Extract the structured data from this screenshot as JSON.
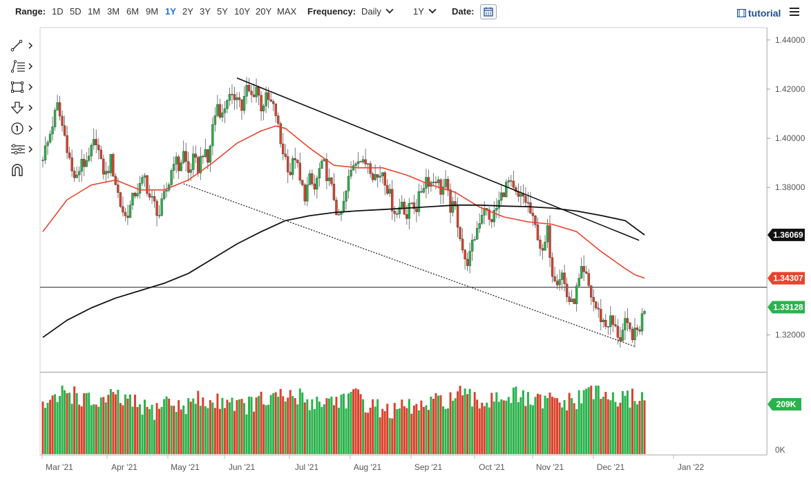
{
  "toolbar": {
    "range_label": "Range:",
    "ranges": [
      "1D",
      "5D",
      "1M",
      "3M",
      "6M",
      "9M",
      "1Y",
      "2Y",
      "3Y",
      "5Y",
      "10Y",
      "20Y",
      "MAX"
    ],
    "active_range": "1Y",
    "frequency_label": "Frequency:",
    "frequency_value": "Daily",
    "period_value": "1Y",
    "date_label": "Date:",
    "tutorial_label": "tutorial"
  },
  "tool_icons": [
    "trendline-icon",
    "fibonacci-icon",
    "rectangle-icon",
    "arrow-down-icon",
    "annotation-icon",
    "settings-lines-icon",
    "magnet-icon"
  ],
  "colors": {
    "up": "#2bb24c",
    "down": "#d9422c",
    "ma_short": "#e8432d",
    "ma_long": "#111111",
    "axis_text": "#555555",
    "accent": "#1f6fd1"
  },
  "chart_data": {
    "type": "candlestick",
    "instrument": "",
    "frequency": "Daily",
    "x_ticks": [
      "Mar '21",
      "Apr '21",
      "May '21",
      "Jun '21",
      "Jul '21",
      "Aug '21",
      "Sep '21",
      "Oct '21",
      "Nov '21",
      "Dec '21",
      "Jan '22"
    ],
    "y_ticks": [
      "1.44000",
      "1.42000",
      "1.40000",
      "1.38000",
      "1.32000"
    ],
    "ylim": [
      1.305,
      1.445
    ],
    "price_labels": [
      {
        "value": 1.36069,
        "text": "1.36069",
        "color": "#111111"
      },
      {
        "value": 1.34307,
        "text": "1.34307",
        "color": "#e8432d"
      },
      {
        "value": 1.33128,
        "text": "1.33128",
        "color": "#2bb24c"
      }
    ],
    "horizontal_line": 1.3394,
    "close_path": [
      [
        0,
        1.393
      ],
      [
        2,
        1.398
      ],
      [
        4,
        1.406
      ],
      [
        6,
        1.413
      ],
      [
        8,
        1.405
      ],
      [
        10,
        1.397
      ],
      [
        12,
        1.386
      ],
      [
        14,
        1.383
      ],
      [
        16,
        1.392
      ],
      [
        18,
        1.388
      ],
      [
        20,
        1.395
      ],
      [
        22,
        1.4
      ],
      [
        24,
        1.389
      ],
      [
        26,
        1.385
      ],
      [
        28,
        1.391
      ],
      [
        30,
        1.382
      ],
      [
        32,
        1.373
      ],
      [
        34,
        1.368
      ],
      [
        36,
        1.372
      ],
      [
        38,
        1.378
      ],
      [
        40,
        1.38
      ],
      [
        42,
        1.384
      ],
      [
        44,
        1.376
      ],
      [
        46,
        1.373
      ],
      [
        48,
        1.369
      ],
      [
        50,
        1.376
      ],
      [
        52,
        1.382
      ],
      [
        54,
        1.392
      ],
      [
        56,
        1.388
      ],
      [
        58,
        1.394
      ],
      [
        60,
        1.386
      ],
      [
        62,
        1.391
      ],
      [
        64,
        1.388
      ],
      [
        66,
        1.395
      ],
      [
        68,
        1.39
      ],
      [
        70,
        1.405
      ],
      [
        72,
        1.414
      ],
      [
        74,
        1.409
      ],
      [
        76,
        1.417
      ],
      [
        78,
        1.415
      ],
      [
        80,
        1.419
      ],
      [
        82,
        1.412
      ],
      [
        84,
        1.42
      ],
      [
        86,
        1.417
      ],
      [
        88,
        1.421
      ],
      [
        90,
        1.413
      ],
      [
        92,
        1.416
      ],
      [
        94,
        1.414
      ],
      [
        96,
        1.41
      ],
      [
        98,
        1.398
      ],
      [
        100,
        1.392
      ],
      [
        102,
        1.386
      ],
      [
        104,
        1.393
      ],
      [
        106,
        1.382
      ],
      [
        108,
        1.377
      ],
      [
        110,
        1.383
      ],
      [
        112,
        1.379
      ],
      [
        114,
        1.387
      ],
      [
        116,
        1.389
      ],
      [
        118,
        1.382
      ],
      [
        120,
        1.376
      ],
      [
        122,
        1.366
      ],
      [
        124,
        1.373
      ],
      [
        126,
        1.383
      ],
      [
        128,
        1.39
      ],
      [
        130,
        1.393
      ],
      [
        132,
        1.389
      ],
      [
        134,
        1.391
      ],
      [
        136,
        1.386
      ],
      [
        138,
        1.384
      ],
      [
        140,
        1.387
      ],
      [
        142,
        1.38
      ],
      [
        144,
        1.373
      ],
      [
        146,
        1.369
      ],
      [
        148,
        1.375
      ],
      [
        150,
        1.368
      ],
      [
        152,
        1.374
      ],
      [
        154,
        1.372
      ],
      [
        156,
        1.379
      ],
      [
        158,
        1.384
      ],
      [
        160,
        1.382
      ],
      [
        162,
        1.384
      ],
      [
        164,
        1.379
      ],
      [
        166,
        1.381
      ],
      [
        168,
        1.372
      ],
      [
        170,
        1.371
      ],
      [
        172,
        1.361
      ],
      [
        174,
        1.349
      ],
      [
        176,
        1.352
      ],
      [
        178,
        1.36
      ],
      [
        180,
        1.367
      ],
      [
        182,
        1.373
      ],
      [
        184,
        1.366
      ],
      [
        186,
        1.369
      ],
      [
        188,
        1.374
      ],
      [
        190,
        1.379
      ],
      [
        192,
        1.382
      ],
      [
        194,
        1.378
      ],
      [
        196,
        1.375
      ],
      [
        198,
        1.376
      ],
      [
        200,
        1.373
      ],
      [
        202,
        1.366
      ],
      [
        204,
        1.361
      ],
      [
        206,
        1.352
      ],
      [
        208,
        1.362
      ],
      [
        210,
        1.346
      ],
      [
        212,
        1.343
      ],
      [
        214,
        1.345
      ],
      [
        216,
        1.336
      ],
      [
        218,
        1.332
      ],
      [
        220,
        1.338
      ],
      [
        222,
        1.345
      ],
      [
        224,
        1.343
      ],
      [
        226,
        1.336
      ],
      [
        228,
        1.331
      ],
      [
        230,
        1.327
      ],
      [
        232,
        1.324
      ],
      [
        234,
        1.326
      ],
      [
        236,
        1.322
      ],
      [
        238,
        1.319
      ],
      [
        240,
        1.324
      ],
      [
        242,
        1.321
      ],
      [
        244,
        1.32
      ],
      [
        246,
        1.3234
      ],
      [
        248,
        1.3313
      ]
    ],
    "ma_short": [
      [
        0,
        1.362
      ],
      [
        10,
        1.375
      ],
      [
        20,
        1.381
      ],
      [
        30,
        1.383
      ],
      [
        40,
        1.379
      ],
      [
        50,
        1.379
      ],
      [
        60,
        1.383
      ],
      [
        70,
        1.39
      ],
      [
        80,
        1.398
      ],
      [
        90,
        1.403
      ],
      [
        96,
        1.405
      ],
      [
        100,
        1.404
      ],
      [
        110,
        1.396
      ],
      [
        120,
        1.389
      ],
      [
        130,
        1.388
      ],
      [
        140,
        1.388
      ],
      [
        150,
        1.385
      ],
      [
        160,
        1.381
      ],
      [
        170,
        1.378
      ],
      [
        180,
        1.372
      ],
      [
        190,
        1.368
      ],
      [
        200,
        1.366
      ],
      [
        210,
        1.365
      ],
      [
        220,
        1.362
      ],
      [
        230,
        1.354
      ],
      [
        240,
        1.347
      ],
      [
        244,
        1.3445
      ],
      [
        248,
        1.3431
      ]
    ],
    "ma_long": [
      [
        0,
        1.319
      ],
      [
        10,
        1.326
      ],
      [
        20,
        1.331
      ],
      [
        30,
        1.335
      ],
      [
        40,
        1.338
      ],
      [
        50,
        1.341
      ],
      [
        60,
        1.345
      ],
      [
        70,
        1.351
      ],
      [
        80,
        1.357
      ],
      [
        90,
        1.362
      ],
      [
        100,
        1.3665
      ],
      [
        110,
        1.3685
      ],
      [
        120,
        1.3698
      ],
      [
        130,
        1.3705
      ],
      [
        140,
        1.371
      ],
      [
        150,
        1.3716
      ],
      [
        160,
        1.3722
      ],
      [
        170,
        1.3728
      ],
      [
        180,
        1.3728
      ],
      [
        190,
        1.3724
      ],
      [
        200,
        1.3722
      ],
      [
        210,
        1.3716
      ],
      [
        220,
        1.3704
      ],
      [
        230,
        1.3686
      ],
      [
        240,
        1.3665
      ],
      [
        248,
        1.3607
      ]
    ],
    "trendline_upper": [
      [
        80,
        1.4245
      ],
      [
        223,
        1.3731
      ]
    ],
    "trendline_lower_dotted": [
      [
        58,
        1.3815
      ],
      [
        248,
        1.3154
      ]
    ],
    "volume_label": "209K",
    "volume_zero_label": "0K",
    "volume": [
      [
        0,
        0.72
      ],
      [
        6,
        0.77
      ],
      [
        8,
        0.95
      ],
      [
        12,
        0.9
      ],
      [
        20,
        0.74
      ],
      [
        30,
        0.82
      ],
      [
        40,
        0.7
      ],
      [
        46,
        0.62
      ],
      [
        50,
        0.8
      ],
      [
        56,
        0.68
      ],
      [
        64,
        0.79
      ],
      [
        70,
        0.73
      ],
      [
        76,
        0.82
      ],
      [
        82,
        0.7
      ],
      [
        90,
        0.77
      ],
      [
        96,
        0.8
      ],
      [
        104,
        0.84
      ],
      [
        112,
        0.76
      ],
      [
        120,
        0.79
      ],
      [
        128,
        0.84
      ],
      [
        136,
        0.7
      ],
      [
        144,
        0.62
      ],
      [
        150,
        0.69
      ],
      [
        158,
        0.68
      ],
      [
        164,
        0.78
      ],
      [
        172,
        0.85
      ],
      [
        180,
        0.74
      ],
      [
        188,
        0.88
      ],
      [
        196,
        0.82
      ],
      [
        204,
        0.75
      ],
      [
        210,
        0.78
      ],
      [
        216,
        0.74
      ],
      [
        222,
        0.8
      ],
      [
        226,
        1.0
      ],
      [
        230,
        0.86
      ],
      [
        236,
        0.8
      ],
      [
        240,
        0.77
      ],
      [
        244,
        0.86
      ],
      [
        248,
        0.82
      ]
    ]
  }
}
